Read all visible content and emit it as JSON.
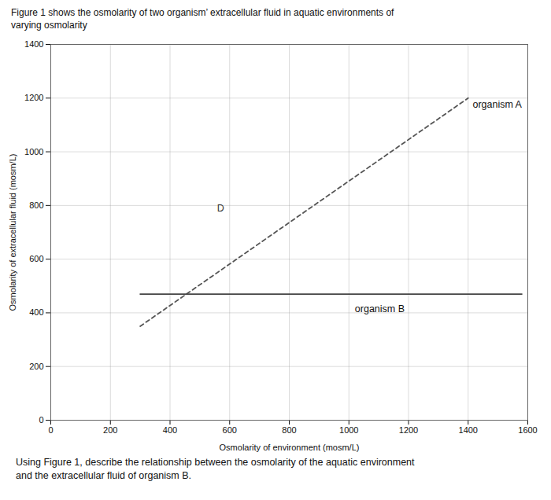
{
  "chart_data": {
    "type": "line",
    "title": [
      "Figure 1 shows the osmolarity of two organism’ extracellular fluid in aquatic environments of",
      "varying osmolarity"
    ],
    "caption": [
      "Using Figure 1, describe the relationship between the osmolarity of the aquatic environment",
      "and the extracellular fluid of organism B."
    ],
    "x_label": "Osmolarity of environment (mosm/L)",
    "y_label": "Osmolarity of extracellular fluid (mosm/L)",
    "xlim": [
      0,
      1600
    ],
    "ylim": [
      0,
      1400
    ],
    "xticks": [
      0,
      200,
      400,
      600,
      800,
      1000,
      1200,
      1400,
      1600
    ],
    "yticks": [
      0,
      200,
      400,
      600,
      800,
      1000,
      1200,
      1400
    ],
    "grid": true,
    "series": [
      {
        "name": "organism A",
        "color": "#555555",
        "line_style": "dashed",
        "x": [
          300,
          1400
        ],
        "values": [
          350,
          1200
        ],
        "label_at": [
          1415,
          1175
        ]
      },
      {
        "name": "organism B",
        "color": "#444444",
        "line_style": "solid",
        "x": [
          300,
          1580
        ],
        "values": [
          470,
          470
        ],
        "label_at": [
          1020,
          415
        ]
      }
    ],
    "annotations": [
      {
        "text": "D",
        "x": 570,
        "y": 790
      }
    ]
  }
}
